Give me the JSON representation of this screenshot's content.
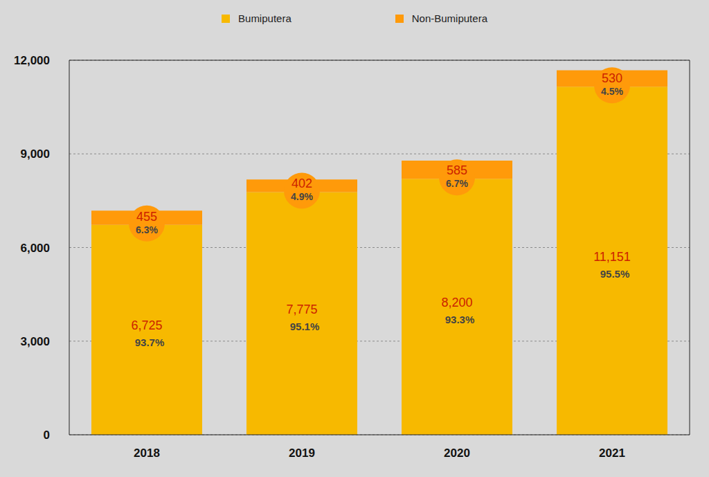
{
  "chart_data": {
    "type": "bar",
    "stacked": true,
    "data_labels": true,
    "grid": true,
    "legend": "top",
    "categories": [
      "2018",
      "2019",
      "2020",
      "2021"
    ],
    "series": [
      {
        "name": "Bumiputera",
        "color": "#f7b900",
        "values": [
          6725,
          7775,
          8200,
          11151
        ],
        "value_labels": [
          "6,725",
          "7,775",
          "8,200",
          "11,151"
        ],
        "share_labels": [
          "93.7%",
          "95.1%",
          "93.3%",
          "95.5%"
        ]
      },
      {
        "name": "Non-Bumiputera",
        "color": "#ff9a0a",
        "values": [
          455,
          402,
          585,
          530
        ],
        "share_labels": [
          "6.3%",
          "4.9%",
          "6.7%",
          "4.5%"
        ]
      }
    ],
    "ylim": [
      0,
      12000
    ],
    "yticks": [
      0,
      {
        "value": 3000,
        "label": "3,000"
      },
      {
        "value": 6000,
        "label": "6,000"
      },
      {
        "value": 9000,
        "label": "9,000"
      },
      {
        "value": 12000,
        "label": "12,000"
      }
    ]
  }
}
